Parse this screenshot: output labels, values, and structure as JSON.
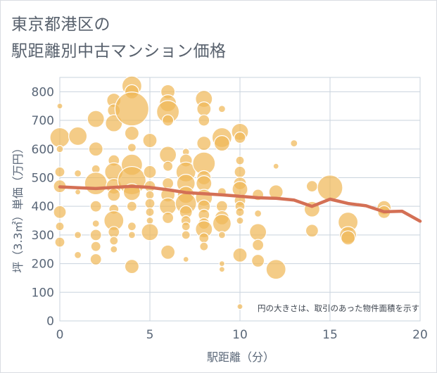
{
  "title_line1": "東京都港区の",
  "title_line2": "駅距離別中古マンション価格",
  "colors": {
    "bubble": "#f0b859",
    "bubble_stroke": "#ffffff",
    "trend": "#d47055",
    "grid": "#c9d3dd",
    "axis_text": "#5a6778"
  },
  "chart_data": {
    "type": "scatter",
    "xlabel": "駅距離（分）",
    "ylabel": "坪（3.3㎡）単価（万円）",
    "xlim": [
      0,
      20
    ],
    "ylim": [
      0,
      850
    ],
    "x_ticks": [
      "0",
      "5",
      "10",
      "15",
      "20"
    ],
    "y_ticks": [
      "0",
      "100",
      "200",
      "300",
      "400",
      "500",
      "600",
      "700",
      "800"
    ],
    "grid": true,
    "annotation": "円の大きさは、取引のあった物件面積を示す",
    "bubbles": [
      {
        "x": 0,
        "y": 750,
        "s": 4
      },
      {
        "x": 0,
        "y": 640,
        "s": 14
      },
      {
        "x": 0,
        "y": 600,
        "s": 5
      },
      {
        "x": 0,
        "y": 520,
        "s": 7
      },
      {
        "x": 0,
        "y": 470,
        "s": 9
      },
      {
        "x": 0,
        "y": 380,
        "s": 9
      },
      {
        "x": 0,
        "y": 330,
        "s": 6
      },
      {
        "x": 0,
        "y": 275,
        "s": 7
      },
      {
        "x": 1,
        "y": 645,
        "s": 13
      },
      {
        "x": 1,
        "y": 515,
        "s": 5
      },
      {
        "x": 1,
        "y": 450,
        "s": 4
      },
      {
        "x": 1,
        "y": 300,
        "s": 5
      },
      {
        "x": 1,
        "y": 230,
        "s": 5
      },
      {
        "x": 2,
        "y": 705,
        "s": 12
      },
      {
        "x": 2,
        "y": 600,
        "s": 10
      },
      {
        "x": 2,
        "y": 530,
        "s": 6
      },
      {
        "x": 2,
        "y": 480,
        "s": 16
      },
      {
        "x": 2,
        "y": 400,
        "s": 8
      },
      {
        "x": 2,
        "y": 340,
        "s": 5
      },
      {
        "x": 2,
        "y": 300,
        "s": 8
      },
      {
        "x": 2,
        "y": 260,
        "s": 7
      },
      {
        "x": 2,
        "y": 215,
        "s": 8
      },
      {
        "x": 3,
        "y": 770,
        "s": 10
      },
      {
        "x": 3,
        "y": 735,
        "s": 9
      },
      {
        "x": 3,
        "y": 690,
        "s": 12
      },
      {
        "x": 3,
        "y": 560,
        "s": 8
      },
      {
        "x": 3,
        "y": 520,
        "s": 13
      },
      {
        "x": 3,
        "y": 470,
        "s": 11
      },
      {
        "x": 3,
        "y": 440,
        "s": 9
      },
      {
        "x": 3,
        "y": 390,
        "s": 7
      },
      {
        "x": 3,
        "y": 350,
        "s": 14
      },
      {
        "x": 3,
        "y": 310,
        "s": 8
      },
      {
        "x": 3,
        "y": 280,
        "s": 6
      },
      {
        "x": 3,
        "y": 250,
        "s": 5
      },
      {
        "x": 4,
        "y": 820,
        "s": 14
      },
      {
        "x": 4,
        "y": 800,
        "s": 10
      },
      {
        "x": 4,
        "y": 740,
        "s": 24
      },
      {
        "x": 4,
        "y": 655,
        "s": 10
      },
      {
        "x": 4,
        "y": 605,
        "s": 6
      },
      {
        "x": 4,
        "y": 545,
        "s": 15
      },
      {
        "x": 4,
        "y": 490,
        "s": 20
      },
      {
        "x": 4,
        "y": 450,
        "s": 12
      },
      {
        "x": 4,
        "y": 400,
        "s": 7
      },
      {
        "x": 4,
        "y": 330,
        "s": 6
      },
      {
        "x": 4,
        "y": 300,
        "s": 5
      },
      {
        "x": 4,
        "y": 190,
        "s": 10
      },
      {
        "x": 5,
        "y": 630,
        "s": 10
      },
      {
        "x": 5,
        "y": 520,
        "s": 9
      },
      {
        "x": 5,
        "y": 470,
        "s": 8
      },
      {
        "x": 5,
        "y": 440,
        "s": 6
      },
      {
        "x": 5,
        "y": 410,
        "s": 7
      },
      {
        "x": 5,
        "y": 380,
        "s": 6
      },
      {
        "x": 5,
        "y": 350,
        "s": 5
      },
      {
        "x": 5,
        "y": 310,
        "s": 12
      },
      {
        "x": 6,
        "y": 800,
        "s": 10
      },
      {
        "x": 6,
        "y": 760,
        "s": 12
      },
      {
        "x": 6,
        "y": 730,
        "s": 16
      },
      {
        "x": 6,
        "y": 700,
        "s": 8
      },
      {
        "x": 6,
        "y": 580,
        "s": 12
      },
      {
        "x": 6,
        "y": 540,
        "s": 7
      },
      {
        "x": 6,
        "y": 480,
        "s": 8
      },
      {
        "x": 6,
        "y": 440,
        "s": 10
      },
      {
        "x": 6,
        "y": 400,
        "s": 12
      },
      {
        "x": 6,
        "y": 360,
        "s": 8
      },
      {
        "x": 6,
        "y": 240,
        "s": 10
      },
      {
        "x": 7,
        "y": 590,
        "s": 5
      },
      {
        "x": 7,
        "y": 560,
        "s": 9
      },
      {
        "x": 7,
        "y": 520,
        "s": 14
      },
      {
        "x": 7,
        "y": 480,
        "s": 13
      },
      {
        "x": 7,
        "y": 440,
        "s": 12
      },
      {
        "x": 7,
        "y": 410,
        "s": 15
      },
      {
        "x": 7,
        "y": 380,
        "s": 9
      },
      {
        "x": 7,
        "y": 350,
        "s": 7
      },
      {
        "x": 7,
        "y": 330,
        "s": 6
      },
      {
        "x": 7,
        "y": 300,
        "s": 6
      },
      {
        "x": 7,
        "y": 215,
        "s": 4
      },
      {
        "x": 8,
        "y": 775,
        "s": 12
      },
      {
        "x": 8,
        "y": 740,
        "s": 10
      },
      {
        "x": 8,
        "y": 700,
        "s": 8
      },
      {
        "x": 8,
        "y": 620,
        "s": 10
      },
      {
        "x": 8,
        "y": 550,
        "s": 16
      },
      {
        "x": 8,
        "y": 500,
        "s": 10
      },
      {
        "x": 8,
        "y": 480,
        "s": 11
      },
      {
        "x": 8,
        "y": 430,
        "s": 12
      },
      {
        "x": 8,
        "y": 400,
        "s": 9
      },
      {
        "x": 8,
        "y": 370,
        "s": 8
      },
      {
        "x": 8,
        "y": 340,
        "s": 8
      },
      {
        "x": 8,
        "y": 320,
        "s": 12
      },
      {
        "x": 8,
        "y": 290,
        "s": 7
      },
      {
        "x": 8,
        "y": 260,
        "s": 6
      },
      {
        "x": 9,
        "y": 740,
        "s": 5
      },
      {
        "x": 9,
        "y": 640,
        "s": 14
      },
      {
        "x": 9,
        "y": 620,
        "s": 11
      },
      {
        "x": 9,
        "y": 450,
        "s": 6
      },
      {
        "x": 9,
        "y": 400,
        "s": 8
      },
      {
        "x": 9,
        "y": 360,
        "s": 10
      },
      {
        "x": 9,
        "y": 340,
        "s": 13
      },
      {
        "x": 9,
        "y": 300,
        "s": 5
      },
      {
        "x": 9,
        "y": 200,
        "s": 4
      },
      {
        "x": 9,
        "y": 180,
        "s": 4
      },
      {
        "x": 10,
        "y": 660,
        "s": 12
      },
      {
        "x": 10,
        "y": 640,
        "s": 8
      },
      {
        "x": 10,
        "y": 560,
        "s": 6
      },
      {
        "x": 10,
        "y": 520,
        "s": 8
      },
      {
        "x": 10,
        "y": 480,
        "s": 9
      },
      {
        "x": 10,
        "y": 460,
        "s": 11
      },
      {
        "x": 10,
        "y": 420,
        "s": 8
      },
      {
        "x": 10,
        "y": 400,
        "s": 7
      },
      {
        "x": 10,
        "y": 380,
        "s": 6
      },
      {
        "x": 10,
        "y": 350,
        "s": 5
      },
      {
        "x": 10,
        "y": 230,
        "s": 10
      },
      {
        "x": 10,
        "y": 50,
        "s": 4
      },
      {
        "x": 11,
        "y": 440,
        "s": 8
      },
      {
        "x": 11,
        "y": 375,
        "s": 5
      },
      {
        "x": 11,
        "y": 310,
        "s": 12
      },
      {
        "x": 11,
        "y": 265,
        "s": 8
      },
      {
        "x": 11,
        "y": 210,
        "s": 9
      },
      {
        "x": 12,
        "y": 540,
        "s": 4
      },
      {
        "x": 12,
        "y": 450,
        "s": 10
      },
      {
        "x": 12,
        "y": 180,
        "s": 14
      },
      {
        "x": 13,
        "y": 620,
        "s": 5
      },
      {
        "x": 14,
        "y": 470,
        "s": 8
      },
      {
        "x": 14,
        "y": 390,
        "s": 11
      },
      {
        "x": 14,
        "y": 315,
        "s": 9
      },
      {
        "x": 15,
        "y": 465,
        "s": 18
      },
      {
        "x": 16,
        "y": 345,
        "s": 14
      },
      {
        "x": 16,
        "y": 300,
        "s": 12
      },
      {
        "x": 16,
        "y": 290,
        "s": 10
      },
      {
        "x": 18,
        "y": 395,
        "s": 10
      },
      {
        "x": 18,
        "y": 380,
        "s": 9
      }
    ],
    "series": [
      {
        "x": [
          0,
          1,
          2,
          3,
          4,
          5,
          6,
          7,
          8,
          9,
          10,
          11,
          12,
          13,
          14,
          15,
          16,
          17,
          18,
          19,
          20
        ],
        "values": [
          468,
          465,
          462,
          466,
          470,
          466,
          458,
          448,
          444,
          440,
          435,
          430,
          428,
          422,
          400,
          425,
          410,
          402,
          381,
          383,
          348
        ]
      }
    ]
  }
}
